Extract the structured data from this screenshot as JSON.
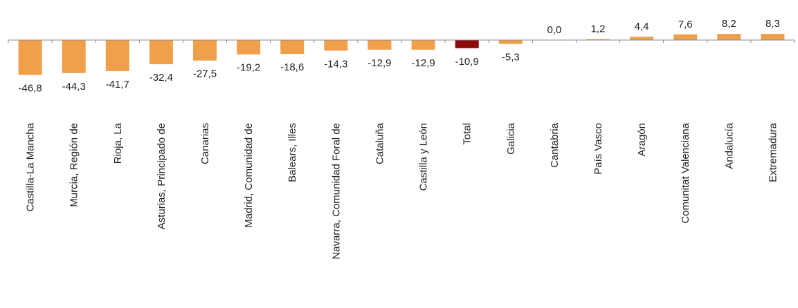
{
  "chart_data": {
    "type": "bar",
    "categories": [
      "Castilla-La Mancha",
      "Murcia, Región de",
      "Rioja, La",
      "Asturias, Principado de",
      "Canarias",
      "Madrid, Comunidad de",
      "Balears, Illes",
      "Navarra, Comunidad Foral de",
      "Cataluña",
      "Castilla y León",
      "Total",
      "Galicia",
      "Cantabria",
      "País Vasco",
      "Aragón",
      "Comunitat Valenciana",
      "Andalucía",
      "Extremadura"
    ],
    "values": [
      -46.8,
      -44.3,
      -41.7,
      -32.4,
      -27.5,
      -19.2,
      -18.6,
      -14.3,
      -12.9,
      -12.9,
      -10.9,
      -5.3,
      0.0,
      1.2,
      4.4,
      7.6,
      8.2,
      8.3
    ],
    "value_labels": [
      "-46,8",
      "-44,3",
      "-41,7",
      "-32,4",
      "-27,5",
      "-19,2",
      "-18,6",
      "-14,3",
      "-12,9",
      "-12,9",
      "-10,9",
      "-5,3",
      "0,0",
      "1,2",
      "4,4",
      "7,6",
      "8,2",
      "8,3"
    ],
    "highlight_category": "Total",
    "colors": {
      "bar": "#F0A04B",
      "highlight": "#8B0A0A",
      "axis": "#888888"
    },
    "title": "",
    "xlabel": "",
    "ylabel": "",
    "grid": false,
    "legend": "none",
    "ylim": [
      -50,
      10
    ]
  }
}
